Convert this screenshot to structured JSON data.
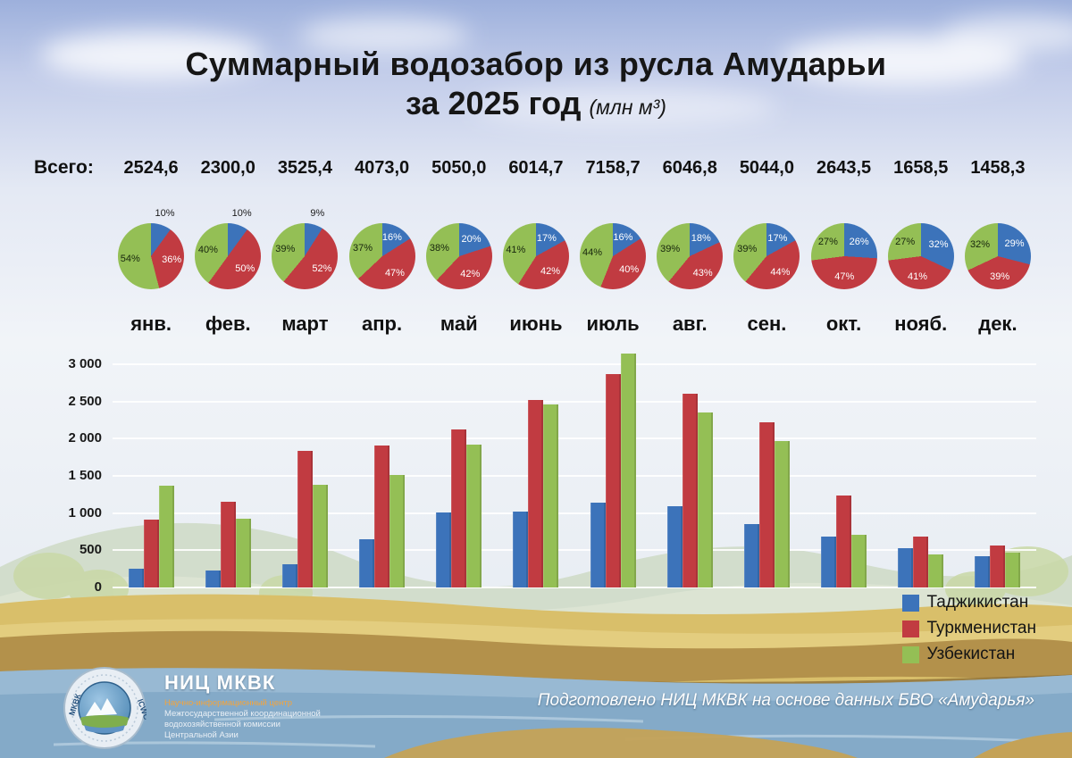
{
  "title": {
    "line1": "Суммарный водозабор из русла Амударьи",
    "line2": "за 2025 год",
    "units": "(млн м³)"
  },
  "totals": {
    "label": "Всего:",
    "values": [
      "2524,6",
      "2300,0",
      "3525,4",
      "4073,0",
      "5050,0",
      "6014,7",
      "7158,7",
      "6046,8",
      "5044,0",
      "2643,5",
      "1658,5",
      "1458,3"
    ]
  },
  "months": [
    "янв.",
    "фев.",
    "март",
    "апр.",
    "май",
    "июнь",
    "июль",
    "авг.",
    "сен.",
    "окт.",
    "нояб.",
    "дек."
  ],
  "legend": [
    {
      "label": "Таджикистан",
      "color": "#3c73ba"
    },
    {
      "label": "Туркменистан",
      "color": "#c13b41"
    },
    {
      "label": "Узбекистан",
      "color": "#94bf55"
    }
  ],
  "footer": {
    "org_short": "НИЦ МКВК",
    "org_lines": [
      "Научно-информационный центр",
      "Межгосударственной координационной",
      "водохозяйственной комиссии",
      "Центральной Азии"
    ],
    "credit": "Подготовлено НИЦ МКВК на основе данных БВО «Амударья»",
    "logo_left": "МКВК",
    "logo_right": "ICWC"
  },
  "chart_data": [
    {
      "type": "pie",
      "description": "Monthly country shares of total water intake, one pie per month",
      "categories": [
        "янв.",
        "фев.",
        "март",
        "апр.",
        "май",
        "июнь",
        "июль",
        "авг.",
        "сен.",
        "окт.",
        "нояб.",
        "дек."
      ],
      "series_order": [
        "Таджикистан",
        "Туркменистан",
        "Узбекистан"
      ],
      "colors": [
        "#3c73ba",
        "#c13b41",
        "#94bf55"
      ],
      "values": [
        [
          10,
          36,
          54
        ],
        [
          10,
          50,
          40
        ],
        [
          9,
          52,
          39
        ],
        [
          16,
          47,
          37
        ],
        [
          20,
          42,
          38
        ],
        [
          17,
          42,
          41
        ],
        [
          16,
          40,
          44
        ],
        [
          18,
          43,
          39
        ],
        [
          17,
          44,
          39
        ],
        [
          26,
          47,
          27
        ],
        [
          32,
          41,
          27
        ],
        [
          29,
          39,
          32
        ]
      ],
      "labels": [
        [
          "10%",
          "36%",
          "54%"
        ],
        [
          "10%",
          "50%",
          "40%"
        ],
        [
          "9%",
          "52%",
          "39%"
        ],
        [
          "16%",
          "47%",
          "37%"
        ],
        [
          "20%",
          "42%",
          "38%"
        ],
        [
          "17%",
          "42%",
          "41%"
        ],
        [
          "16%",
          "40%",
          "44%"
        ],
        [
          "18%",
          "43%",
          "39%"
        ],
        [
          "17%",
          "44%",
          "39%"
        ],
        [
          "26%",
          "47%",
          "27%"
        ],
        [
          "32%",
          "41%",
          "27%"
        ],
        [
          "29%",
          "39%",
          "32%"
        ]
      ]
    },
    {
      "type": "bar",
      "categories": [
        "янв.",
        "фев.",
        "март",
        "апр.",
        "май",
        "июнь",
        "июль",
        "авг.",
        "сен.",
        "окт.",
        "нояб.",
        "дек."
      ],
      "series": [
        {
          "name": "Таджикистан",
          "color": "#3c73ba",
          "values": [
            252,
            230,
            317,
            652,
            1010,
            1022,
            1145,
            1088,
            857,
            687,
            531,
            423
          ]
        },
        {
          "name": "Туркменистан",
          "color": "#c13b41",
          "values": [
            909,
            1150,
            1833,
            1914,
            2121,
            2526,
            2863,
            2600,
            2219,
            1242,
            680,
            569
          ]
        },
        {
          "name": "Узбекистан",
          "color": "#94bf55",
          "values": [
            1363,
            920,
            1375,
            1507,
            1919,
            2466,
            3150,
            2358,
            1967,
            714,
            448,
            467
          ]
        }
      ],
      "ylim": [
        0,
        3000
      ],
      "yticks": [
        0,
        500,
        1000,
        1500,
        2000,
        2500,
        3000
      ],
      "ytick_labels": [
        "0",
        "500",
        "1 000",
        "1 500",
        "2 000",
        "2 500",
        "3 000"
      ],
      "grid": true,
      "legend_position": "bottom-right",
      "xlabel": "",
      "ylabel": ""
    }
  ]
}
